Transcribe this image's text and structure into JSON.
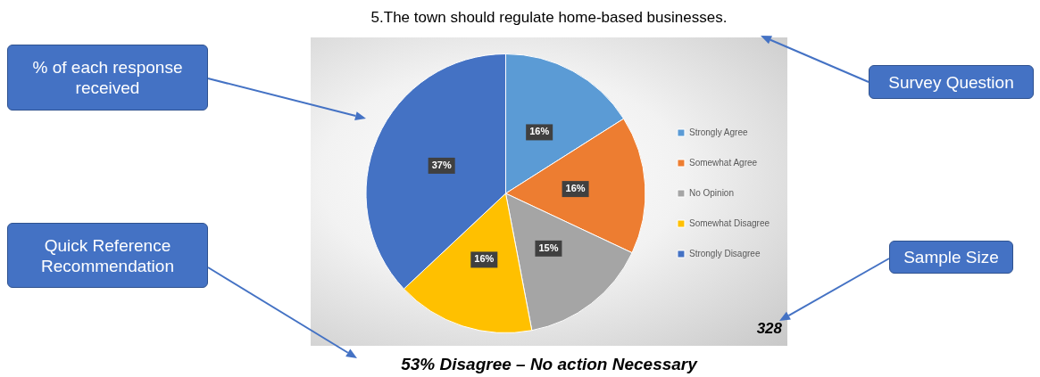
{
  "chart_data": {
    "type": "pie",
    "title": "5.The town should regulate home-based businesses.",
    "categories": [
      "Strongly Agree",
      "Somewhat Agree",
      "No Opinion",
      "Somewhat Disagree",
      "Strongly Disagree"
    ],
    "values": [
      16,
      16,
      15,
      16,
      37
    ],
    "colors": [
      "#5b9bd5",
      "#ed7d31",
      "#a5a5a5",
      "#ffc000",
      "#4472c4"
    ],
    "value_labels": [
      "16%",
      "16%",
      "15%",
      "16%",
      "37%"
    ],
    "legend": "right",
    "annotations": [
      "% of each response received",
      "Quick Reference Recommendation",
      "Survey Question",
      "Sample Size",
      "328",
      "53% Disagree – No action Necessary"
    ]
  }
}
